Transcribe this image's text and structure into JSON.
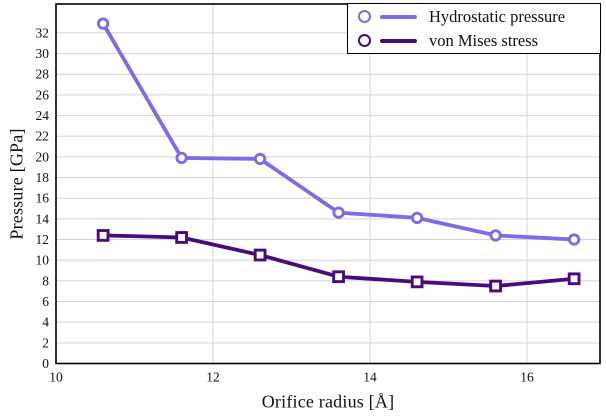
{
  "chart_data": {
    "type": "line",
    "title": "",
    "xlabel": "Orifice radius [Å]",
    "ylabel": "Pressure [GPa]",
    "xlim": [
      10,
      16.93
    ],
    "ylim": [
      0,
      34.8
    ],
    "xticks": [
      10,
      12,
      14,
      16
    ],
    "yticks": [
      0,
      2,
      4,
      6,
      8,
      10,
      12,
      14,
      16,
      18,
      20,
      22,
      24,
      26,
      28,
      30,
      32
    ],
    "grid": true,
    "legend_position": "top-right",
    "legend_marker": "circle",
    "x": [
      10.6,
      11.6,
      12.6,
      13.6,
      14.6,
      15.6,
      16.6
    ],
    "series": [
      {
        "name": "Hydrostatic pressure",
        "marker": "circle",
        "color": "#7b6de8",
        "values": [
          32.9,
          19.9,
          19.8,
          14.6,
          14.1,
          12.4,
          12.0
        ]
      },
      {
        "name": "von Mises stress",
        "marker": "square",
        "color": "#4a0a7f",
        "values": [
          12.4,
          12.2,
          10.5,
          8.4,
          7.9,
          7.5,
          8.2
        ]
      }
    ],
    "colors": {
      "grid": "#d4d4d4",
      "axis": "#000000",
      "background": "#ffffff",
      "marker_face": "#ffffff"
    }
  }
}
